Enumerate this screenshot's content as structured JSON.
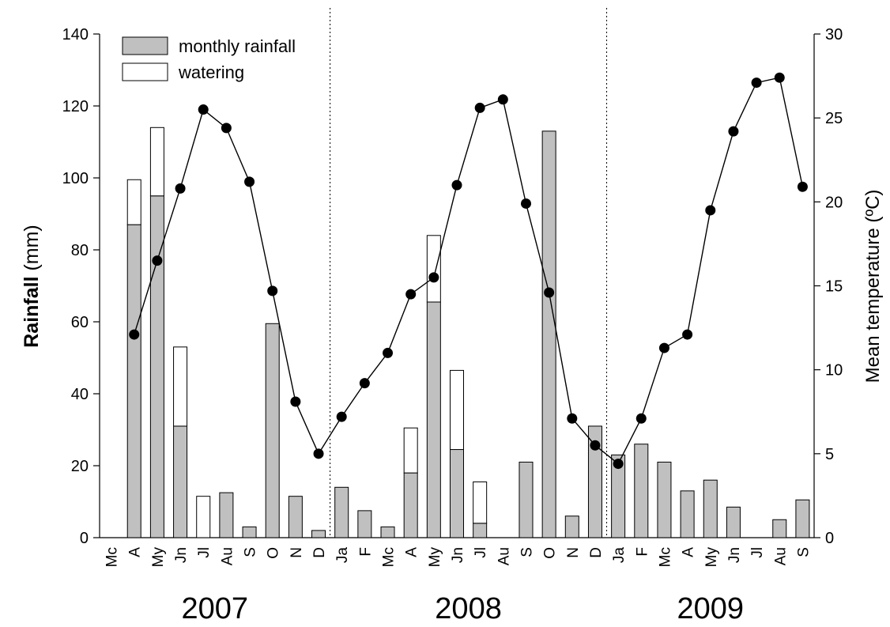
{
  "chart_data": {
    "type": "bar",
    "categories": [
      "Mc",
      "A",
      "My",
      "Jn",
      "Jl",
      "Au",
      "S",
      "O",
      "N",
      "D",
      "Ja",
      "F",
      "Mc",
      "A",
      "My",
      "Jn",
      "Jl",
      "Au",
      "S",
      "O",
      "N",
      "D",
      "Ja",
      "F",
      "Mc",
      "A",
      "My",
      "Jn",
      "Jl",
      "Au",
      "S"
    ],
    "years": [
      {
        "label": "2007",
        "start": 0,
        "end": 9
      },
      {
        "label": "2008",
        "start": 10,
        "end": 21
      },
      {
        "label": "2009",
        "start": 22,
        "end": 30
      }
    ],
    "series": [
      {
        "name": "monthly rainfall",
        "kind": "bar-stack-bottom",
        "axis": "left",
        "color": "#c0c0c0",
        "values": [
          0,
          87,
          95,
          31,
          0,
          12.5,
          3,
          59.5,
          11.5,
          2,
          14,
          7.5,
          3,
          18,
          65.5,
          24.5,
          4,
          0,
          21,
          113,
          6,
          31,
          23,
          26,
          21,
          13,
          16,
          8.5,
          0,
          5,
          10.5
        ]
      },
      {
        "name": "watering",
        "kind": "bar-stack-top",
        "axis": "left",
        "color": "#ffffff",
        "values": [
          0,
          12.5,
          19,
          22,
          11.5,
          0,
          0,
          0,
          0,
          0,
          0,
          0,
          0,
          12.5,
          18.5,
          22,
          11.5,
          0,
          0,
          0,
          0,
          0,
          0,
          0,
          0,
          0,
          0,
          0,
          0,
          0,
          0
        ]
      },
      {
        "name": "",
        "kind": "line",
        "axis": "right",
        "color": "#000000",
        "values": [
          null,
          12.1,
          16.5,
          20.8,
          25.5,
          24.4,
          21.2,
          14.7,
          8.1,
          5.0,
          7.2,
          9.2,
          11.0,
          14.5,
          15.5,
          21.0,
          25.6,
          26.1,
          19.9,
          14.6,
          7.1,
          5.5,
          4.4,
          7.1,
          11.3,
          12.1,
          19.5,
          24.2,
          27.1,
          27.4,
          20.9
        ]
      }
    ],
    "ylabel": "Rainfall (mm)",
    "ylabel_bold_part": "Rainfall",
    "ylabel_regular_part": " (mm)",
    "ylim": [
      0,
      140
    ],
    "yticks": [
      0,
      20,
      40,
      60,
      80,
      100,
      120,
      140
    ],
    "ylabel_right": "Mean temperature (ºC)",
    "ylim_right": [
      0,
      30
    ],
    "yticks_right": [
      0,
      5,
      10,
      15,
      20,
      25,
      30
    ],
    "grid": false,
    "legend": {
      "placement": "top-left",
      "items": [
        {
          "label": "monthly rainfall",
          "color": "#c0c0c0"
        },
        {
          "label": "watering",
          "color": "#ffffff"
        }
      ]
    }
  }
}
